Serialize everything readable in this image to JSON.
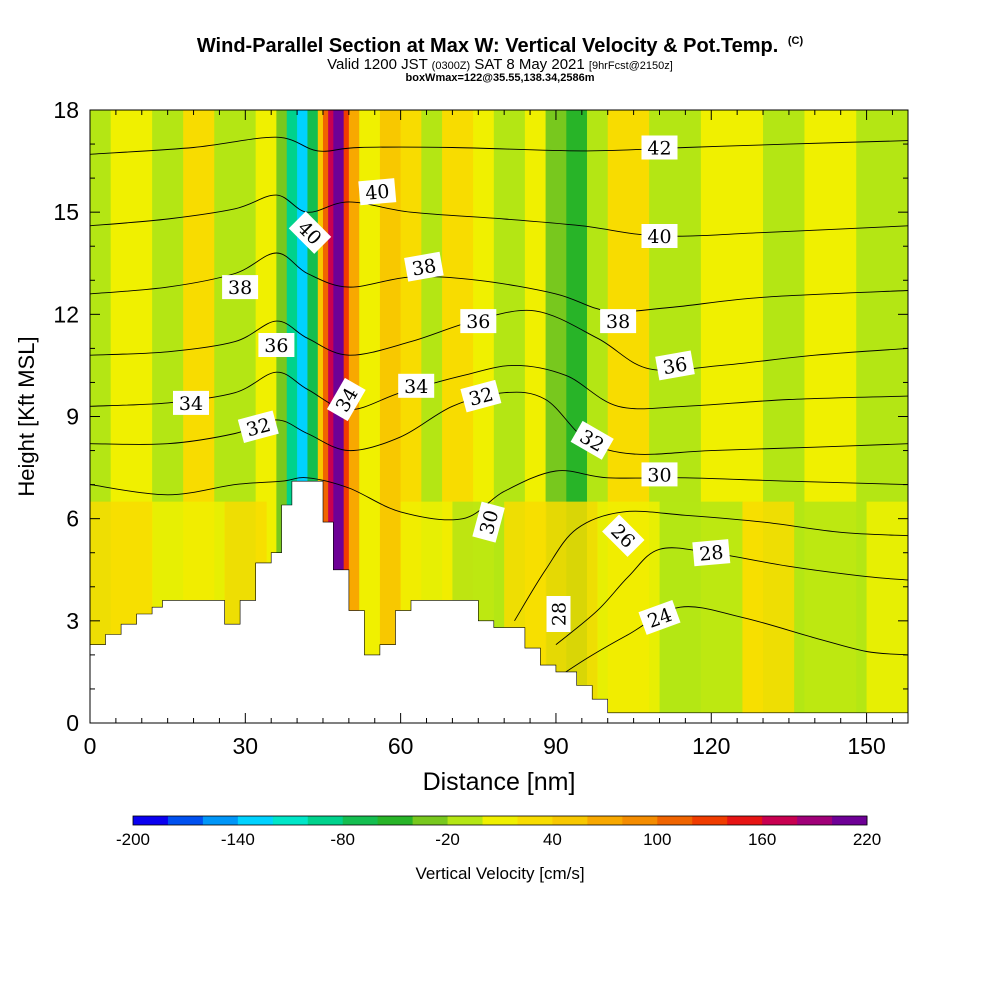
{
  "title": {
    "main": "Wind-Parallel Section at Max W: Vertical Velocity & Pot.Temp.",
    "tag": "(C)",
    "valid_prefix": "Valid 1200 JST",
    "utc": "(0300Z)",
    "valid_date": "SAT 8 May 2021",
    "forecast": "[9hrFcst@2150z]",
    "box_info": "boxWmax=122@35.55,138.34,2586m"
  },
  "chart_data": {
    "type": "heatmap",
    "xlabel": "Distance [nm]",
    "ylabel": "Height [Kft MSL]",
    "xlim": [
      0,
      158
    ],
    "ylim": [
      0,
      18
    ],
    "x_ticks": [
      0,
      30,
      60,
      90,
      120,
      150
    ],
    "y_ticks": [
      0,
      3,
      6,
      9,
      12,
      15,
      18
    ],
    "colorbar": {
      "label": "Vertical Velocity [cm/s]",
      "range": [
        -200,
        220
      ],
      "step": 20,
      "tick_values": [
        -200,
        -140,
        -80,
        -20,
        40,
        100,
        160,
        220
      ],
      "colors": [
        "#0a00f0",
        "#0050f0",
        "#0096f8",
        "#00d2ff",
        "#00e6c8",
        "#00d28c",
        "#14be50",
        "#28b428",
        "#78c81e",
        "#b4e614",
        "#f0f000",
        "#f8dc00",
        "#f8c800",
        "#f8a800",
        "#f48c00",
        "#f06400",
        "#f03c00",
        "#e61414",
        "#c80050",
        "#a00078",
        "#6e0096"
      ]
    },
    "terrain_kft": [
      [
        0,
        2.3
      ],
      [
        3,
        2.3
      ],
      [
        3,
        2.6
      ],
      [
        6,
        2.6
      ],
      [
        6,
        2.9
      ],
      [
        9,
        2.9
      ],
      [
        9,
        3.2
      ],
      [
        12,
        3.2
      ],
      [
        12,
        3.4
      ],
      [
        14,
        3.4
      ],
      [
        14,
        3.6
      ],
      [
        26,
        3.6
      ],
      [
        26,
        2.9
      ],
      [
        29,
        2.9
      ],
      [
        29,
        3.6
      ],
      [
        32,
        3.6
      ],
      [
        32,
        4.7
      ],
      [
        35,
        4.7
      ],
      [
        35,
        5.0
      ],
      [
        37,
        5.0
      ],
      [
        37,
        6.4
      ],
      [
        39,
        6.4
      ],
      [
        39,
        7.1
      ],
      [
        45,
        7.1
      ],
      [
        45,
        5.9
      ],
      [
        47,
        5.9
      ],
      [
        47,
        4.5
      ],
      [
        50,
        4.5
      ],
      [
        50,
        3.3
      ],
      [
        53,
        3.3
      ],
      [
        53,
        2.0
      ],
      [
        56,
        2.0
      ],
      [
        56,
        2.3
      ],
      [
        59,
        2.3
      ],
      [
        59,
        3.3
      ],
      [
        62,
        3.3
      ],
      [
        62,
        3.6
      ],
      [
        75,
        3.6
      ],
      [
        75,
        3.0
      ],
      [
        78,
        3.0
      ],
      [
        78,
        2.8
      ],
      [
        84,
        2.8
      ],
      [
        84,
        2.2
      ],
      [
        87,
        2.2
      ],
      [
        87,
        1.7
      ],
      [
        90,
        1.7
      ],
      [
        90,
        1.5
      ],
      [
        94,
        1.5
      ],
      [
        94,
        1.1
      ],
      [
        97,
        1.1
      ],
      [
        97,
        0.7
      ],
      [
        100,
        0.7
      ],
      [
        100,
        0.3
      ],
      [
        158,
        0.3
      ]
    ],
    "wv_bands": [
      {
        "x": 0,
        "w": 4,
        "v": -10
      },
      {
        "x": 4,
        "w": 8,
        "v": 10
      },
      {
        "x": 12,
        "w": 6,
        "v": -5
      },
      {
        "x": 18,
        "w": 6,
        "v": 20
      },
      {
        "x": 24,
        "w": 8,
        "v": -10
      },
      {
        "x": 32,
        "w": 4,
        "v": 5
      },
      {
        "x": 36,
        "w": 2,
        "v": -40
      },
      {
        "x": 38,
        "w": 2,
        "v": -100
      },
      {
        "x": 40,
        "w": 2,
        "v": -140
      },
      {
        "x": 42,
        "w": 2,
        "v": -80
      },
      {
        "x": 44,
        "w": 1,
        "v": 40
      },
      {
        "x": 45,
        "w": 1,
        "v": 100
      },
      {
        "x": 46,
        "w": 1,
        "v": 160
      },
      {
        "x": 47,
        "w": 2,
        "v": 220
      },
      {
        "x": 49,
        "w": 1,
        "v": 120
      },
      {
        "x": 50,
        "w": 2,
        "v": 60
      },
      {
        "x": 52,
        "w": 4,
        "v": 10
      },
      {
        "x": 56,
        "w": 4,
        "v": 40
      },
      {
        "x": 60,
        "w": 4,
        "v": 20
      },
      {
        "x": 64,
        "w": 4,
        "v": -5
      },
      {
        "x": 68,
        "w": 6,
        "v": 30
      },
      {
        "x": 74,
        "w": 4,
        "v": 10
      },
      {
        "x": 78,
        "w": 6,
        "v": -10
      },
      {
        "x": 84,
        "w": 4,
        "v": 10
      },
      {
        "x": 88,
        "w": 4,
        "v": -40
      },
      {
        "x": 92,
        "w": 4,
        "v": -60
      },
      {
        "x": 96,
        "w": 4,
        "v": -20
      },
      {
        "x": 100,
        "w": 8,
        "v": 20
      },
      {
        "x": 108,
        "w": 10,
        "v": -10
      },
      {
        "x": 118,
        "w": 12,
        "v": 15
      },
      {
        "x": 130,
        "w": 8,
        "v": -10
      },
      {
        "x": 138,
        "w": 10,
        "v": 10
      },
      {
        "x": 148,
        "w": 10,
        "v": -15
      }
    ],
    "wv_low_bands": [
      {
        "x": 0,
        "w": 12,
        "v": 25
      },
      {
        "x": 12,
        "w": 14,
        "v": 10
      },
      {
        "x": 26,
        "w": 8,
        "v": 30
      },
      {
        "x": 60,
        "w": 10,
        "v": 10
      },
      {
        "x": 70,
        "w": 10,
        "v": -10
      },
      {
        "x": 80,
        "w": 8,
        "v": 30
      },
      {
        "x": 88,
        "w": 10,
        "v": 20
      },
      {
        "x": 98,
        "w": 12,
        "v": 10
      },
      {
        "x": 110,
        "w": 16,
        "v": -5
      },
      {
        "x": 126,
        "w": 10,
        "v": 20
      },
      {
        "x": 136,
        "w": 14,
        "v": -15
      },
      {
        "x": 150,
        "w": 8,
        "v": 15
      }
    ],
    "theta_contours": [
      {
        "level": 24,
        "pts": [
          [
            86,
            0.9
          ],
          [
            96,
            1.9
          ],
          [
            104,
            2.6
          ],
          [
            114,
            3.4
          ],
          [
            126,
            3.1
          ],
          [
            140,
            2.5
          ],
          [
            150,
            2.1
          ],
          [
            158,
            2.0
          ]
        ]
      },
      {
        "level": 26,
        "pts": [
          [
            90,
            2.3
          ],
          [
            98,
            3.3
          ],
          [
            104,
            4.3
          ],
          [
            110,
            5.1
          ],
          [
            120,
            5.0
          ],
          [
            135,
            4.6
          ],
          [
            150,
            4.3
          ],
          [
            158,
            4.2
          ]
        ]
      },
      {
        "level": 28,
        "pts": [
          [
            82,
            3.0
          ],
          [
            88,
            4.5
          ],
          [
            94,
            5.7
          ],
          [
            103,
            6.2
          ],
          [
            115,
            6.1
          ],
          [
            130,
            5.9
          ],
          [
            145,
            5.6
          ],
          [
            158,
            5.5
          ]
        ]
      },
      {
        "level": 30,
        "pts": [
          [
            0,
            7.0
          ],
          [
            15,
            6.7
          ],
          [
            28,
            7.0
          ],
          [
            37,
            7.1
          ],
          [
            42,
            7.2
          ],
          [
            50,
            6.9
          ],
          [
            60,
            6.2
          ],
          [
            72,
            6.0
          ],
          [
            80,
            6.8
          ],
          [
            90,
            7.4
          ],
          [
            100,
            7.2
          ],
          [
            115,
            7.2
          ],
          [
            135,
            7.1
          ],
          [
            158,
            7.0
          ]
        ]
      },
      {
        "level": 32,
        "pts": [
          [
            0,
            8.2
          ],
          [
            15,
            8.2
          ],
          [
            28,
            8.5
          ],
          [
            36,
            8.9
          ],
          [
            42,
            8.5
          ],
          [
            50,
            8.0
          ],
          [
            60,
            8.4
          ],
          [
            70,
            9.3
          ],
          [
            80,
            9.7
          ],
          [
            88,
            9.5
          ],
          [
            96,
            8.3
          ],
          [
            105,
            7.9
          ],
          [
            120,
            8.0
          ],
          [
            140,
            8.1
          ],
          [
            158,
            8.2
          ]
        ]
      },
      {
        "level": 34,
        "pts": [
          [
            0,
            9.3
          ],
          [
            15,
            9.4
          ],
          [
            28,
            9.7
          ],
          [
            36,
            10.3
          ],
          [
            42,
            9.8
          ],
          [
            50,
            9.2
          ],
          [
            60,
            9.7
          ],
          [
            72,
            10.2
          ],
          [
            82,
            10.5
          ],
          [
            92,
            10.2
          ],
          [
            102,
            9.3
          ],
          [
            115,
            9.3
          ],
          [
            135,
            9.5
          ],
          [
            158,
            9.6
          ]
        ]
      },
      {
        "level": 36,
        "pts": [
          [
            0,
            10.8
          ],
          [
            15,
            10.9
          ],
          [
            28,
            11.2
          ],
          [
            36,
            11.8
          ],
          [
            42,
            11.3
          ],
          [
            50,
            10.8
          ],
          [
            62,
            11.2
          ],
          [
            74,
            11.8
          ],
          [
            86,
            12.1
          ],
          [
            98,
            11.3
          ],
          [
            108,
            10.4
          ],
          [
            122,
            10.5
          ],
          [
            140,
            10.8
          ],
          [
            158,
            11.0
          ]
        ]
      },
      {
        "level": 38,
        "pts": [
          [
            0,
            12.6
          ],
          [
            15,
            12.8
          ],
          [
            28,
            13.2
          ],
          [
            36,
            13.8
          ],
          [
            42,
            13.2
          ],
          [
            50,
            12.8
          ],
          [
            62,
            13.1
          ],
          [
            75,
            13.0
          ],
          [
            90,
            12.6
          ],
          [
            100,
            12.1
          ],
          [
            112,
            12.2
          ],
          [
            130,
            12.5
          ],
          [
            158,
            12.7
          ]
        ]
      },
      {
        "level": 40,
        "pts": [
          [
            0,
            14.6
          ],
          [
            15,
            14.8
          ],
          [
            28,
            15.1
          ],
          [
            36,
            15.5
          ],
          [
            42,
            15.0
          ],
          [
            50,
            15.3
          ],
          [
            62,
            15.0
          ],
          [
            80,
            14.8
          ],
          [
            95,
            14.6
          ],
          [
            110,
            14.3
          ],
          [
            130,
            14.4
          ],
          [
            158,
            14.6
          ]
        ]
      },
      {
        "level": 42,
        "pts": [
          [
            0,
            16.7
          ],
          [
            20,
            16.9
          ],
          [
            36,
            17.2
          ],
          [
            44,
            16.8
          ],
          [
            52,
            16.9
          ],
          [
            70,
            16.9
          ],
          [
            95,
            16.8
          ],
          [
            115,
            16.9
          ],
          [
            135,
            17.0
          ],
          [
            158,
            17.1
          ]
        ]
      }
    ],
    "contour_labels": [
      {
        "text": "42",
        "x": 110,
        "y": 16.9,
        "rot": 0
      },
      {
        "text": "40",
        "x": 55.5,
        "y": 15.6,
        "rot": -5
      },
      {
        "text": "40",
        "x": 42.5,
        "y": 14.4,
        "rot": 45
      },
      {
        "text": "40",
        "x": 110,
        "y": 14.3,
        "rot": 0
      },
      {
        "text": "38",
        "x": 29,
        "y": 12.8,
        "rot": 0
      },
      {
        "text": "38",
        "x": 64.5,
        "y": 13.4,
        "rot": -10
      },
      {
        "text": "38",
        "x": 102,
        "y": 11.8,
        "rot": 0
      },
      {
        "text": "36",
        "x": 36,
        "y": 11.1,
        "rot": 0
      },
      {
        "text": "36",
        "x": 75,
        "y": 11.8,
        "rot": 0
      },
      {
        "text": "36",
        "x": 113,
        "y": 10.5,
        "rot": -10
      },
      {
        "text": "34",
        "x": 19.5,
        "y": 9.4,
        "rot": 0
      },
      {
        "text": "34",
        "x": 63,
        "y": 9.9,
        "rot": 0
      },
      {
        "text": "34",
        "x": 49.5,
        "y": 9.5,
        "rot": -60
      },
      {
        "text": "32",
        "x": 32.5,
        "y": 8.7,
        "rot": -15
      },
      {
        "text": "32",
        "x": 75.5,
        "y": 9.6,
        "rot": -15
      },
      {
        "text": "32",
        "x": 97,
        "y": 8.3,
        "rot": 30
      },
      {
        "text": "30",
        "x": 110,
        "y": 7.3,
        "rot": 0
      },
      {
        "text": "30",
        "x": 77,
        "y": 5.9,
        "rot": -75
      },
      {
        "text": "28",
        "x": 120,
        "y": 5.0,
        "rot": -5
      },
      {
        "text": "28",
        "x": 90.5,
        "y": 3.2,
        "rot": -90
      },
      {
        "text": "26",
        "x": 103,
        "y": 5.5,
        "rot": 45
      },
      {
        "text": "24",
        "x": 110,
        "y": 3.1,
        "rot": -20
      }
    ]
  }
}
